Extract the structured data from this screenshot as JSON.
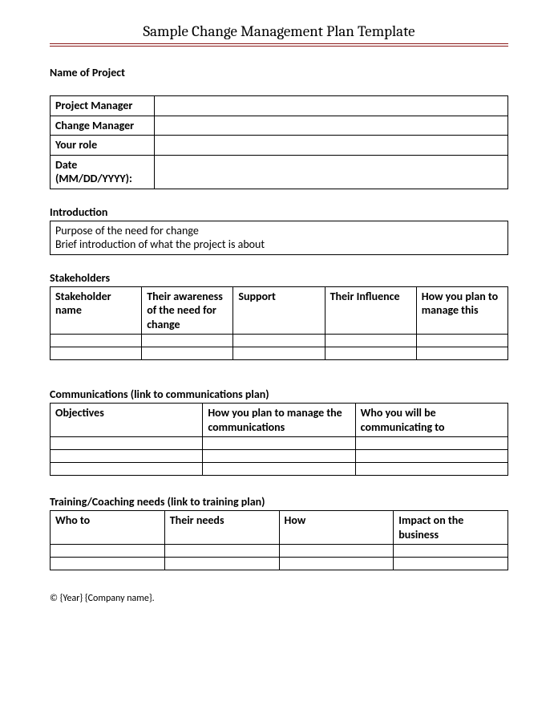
{
  "title": "Sample Change Management Plan Template",
  "labels": {
    "nameOfProject": "Name of Project",
    "introduction": "Introduction",
    "stakeholders": "Stakeholders",
    "communications": "Communications  (link to communications plan)",
    "training": "Training/Coaching needs (link to training plan)"
  },
  "projectInfo": {
    "rows": [
      {
        "label": "Project Manager",
        "value": ""
      },
      {
        "label": "Change Manager",
        "value": ""
      },
      {
        "label": "Your role",
        "value": ""
      },
      {
        "label": "Date (MM/DD/YYYY):",
        "value": ""
      }
    ]
  },
  "introduction": {
    "line1": "Purpose of the need for change",
    "line2": "Brief introduction of what the project is about"
  },
  "stakeholdersTable": {
    "headers": [
      "Stakeholder name",
      "Their awareness of the need for change",
      "Support",
      "Their Influence",
      "How you plan to manage this"
    ]
  },
  "communicationsTable": {
    "headers": [
      "Objectives",
      "How you plan to manage the communications",
      "Who you will be communicating to"
    ]
  },
  "trainingTable": {
    "headers": [
      "Who to",
      "Their needs",
      "How",
      "Impact on the business"
    ]
  },
  "footer": "© {Year} {Company name}."
}
